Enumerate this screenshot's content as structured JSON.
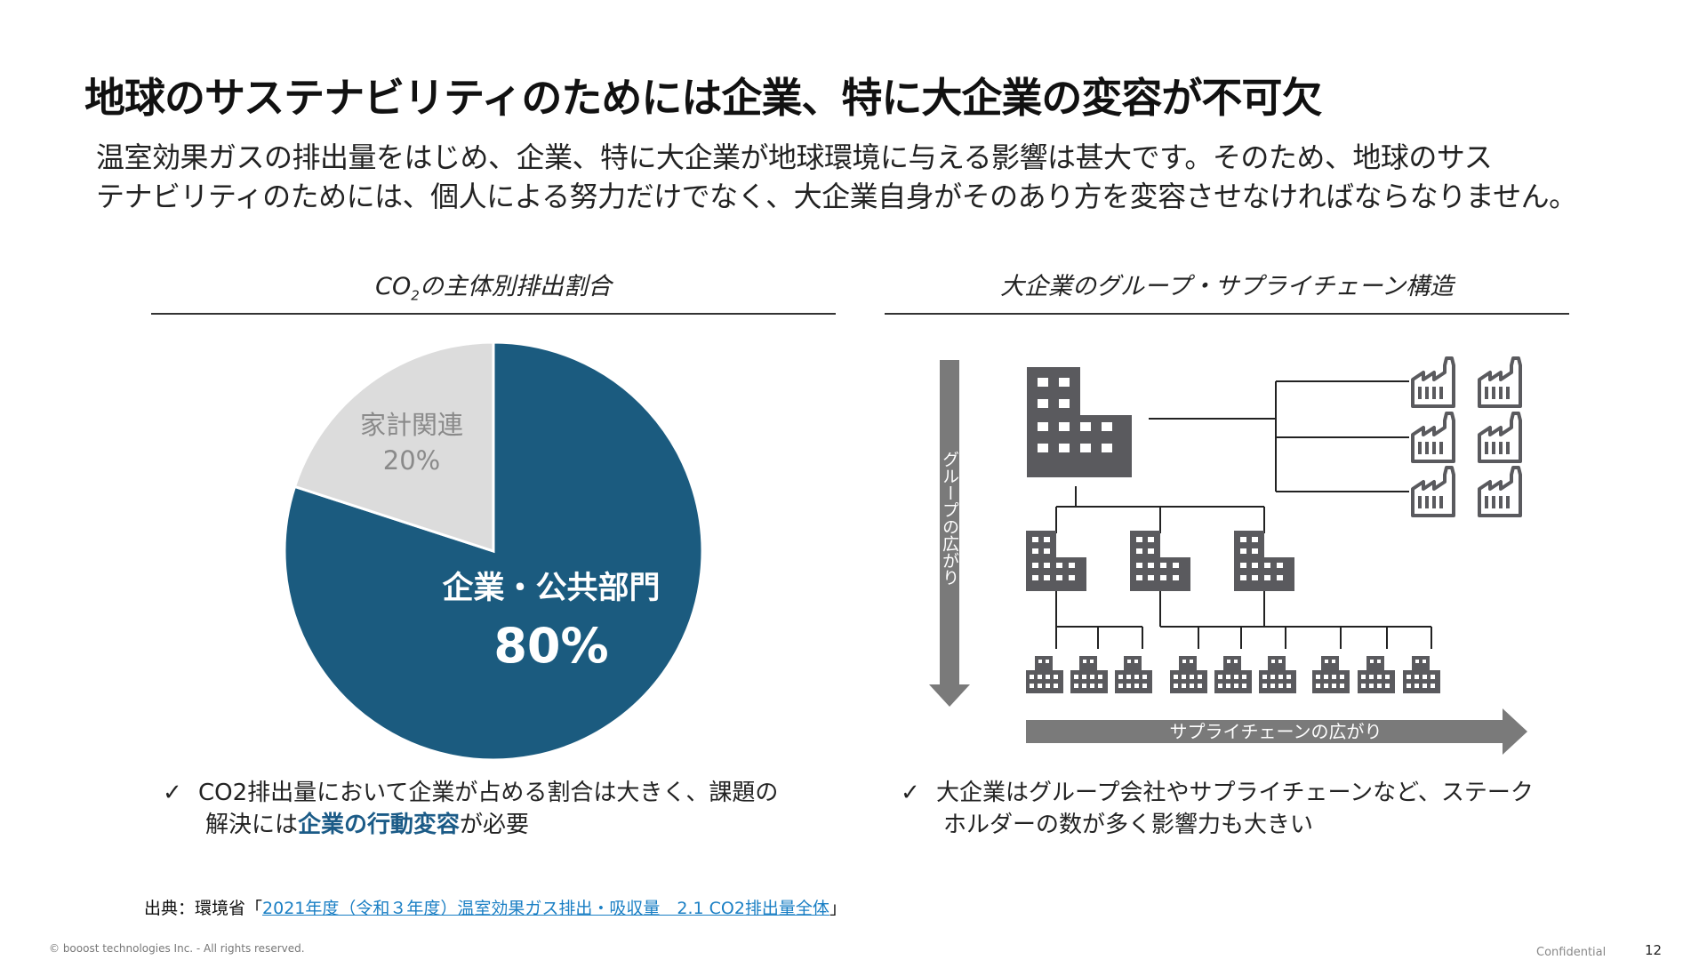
{
  "title": "地球のサステナビリティのためには企業、特に大企業の変容が不可欠",
  "lead": {
    "line1": "温室効果ガスの排出量をはじめ、企業、特に大企業が地球環境に与える影響は甚大です。そのため、地球のサス",
    "line2": "テナビリティのためには、個人による努力だけでなく、大企業自身がそのあり方を変容させなければならなりません。"
  },
  "left": {
    "section_title_pre": "CO",
    "section_title_sub": "2",
    "section_title_post": "の主体別排出割合",
    "check_mark": "✓",
    "bullet_line1": "CO2排出量において企業が占める割合は大きく、課題の",
    "bullet_line2_pre": "解決には",
    "bullet_line2_emph": "企業の行動変容",
    "bullet_line2_post": "が必要"
  },
  "chart_data": {
    "type": "pie",
    "title": "CO2の主体別排出割合",
    "slices": [
      {
        "label": "企業・公共部門",
        "value": 80,
        "value_label": "80%",
        "color": "#1b5b7f"
      },
      {
        "label": "家計関連",
        "value": 20,
        "value_label": "20%",
        "color": "#dcdcdc"
      }
    ]
  },
  "right": {
    "section_title": "大企業のグループ・サプライチェーン構造",
    "vertical_arrow_label": "グループの広がり",
    "horizontal_arrow_label": "サプライチェーンの広がり",
    "check_mark": "✓",
    "bullet_line1": "大企業はグループ会社やサプライチェーンなど、ステーク",
    "bullet_line2": "ホルダーの数が多く影響力も大きい"
  },
  "source": {
    "prefix": "出典：環境省「",
    "link_text": "2021年度（令和３年度）温室効果ガス排出・吸収量　2.1 CO2排出量全体",
    "suffix": "」"
  },
  "footer": {
    "copyright": "© booost technologies Inc. - All rights reserved.",
    "confidential": "Confidential",
    "page_number": "12"
  },
  "colors": {
    "pie_main": "#1b5b7f",
    "pie_other": "#dcdcdc",
    "icon_gray": "#5a5a5e",
    "arrow_gray": "#7a7a7a"
  }
}
